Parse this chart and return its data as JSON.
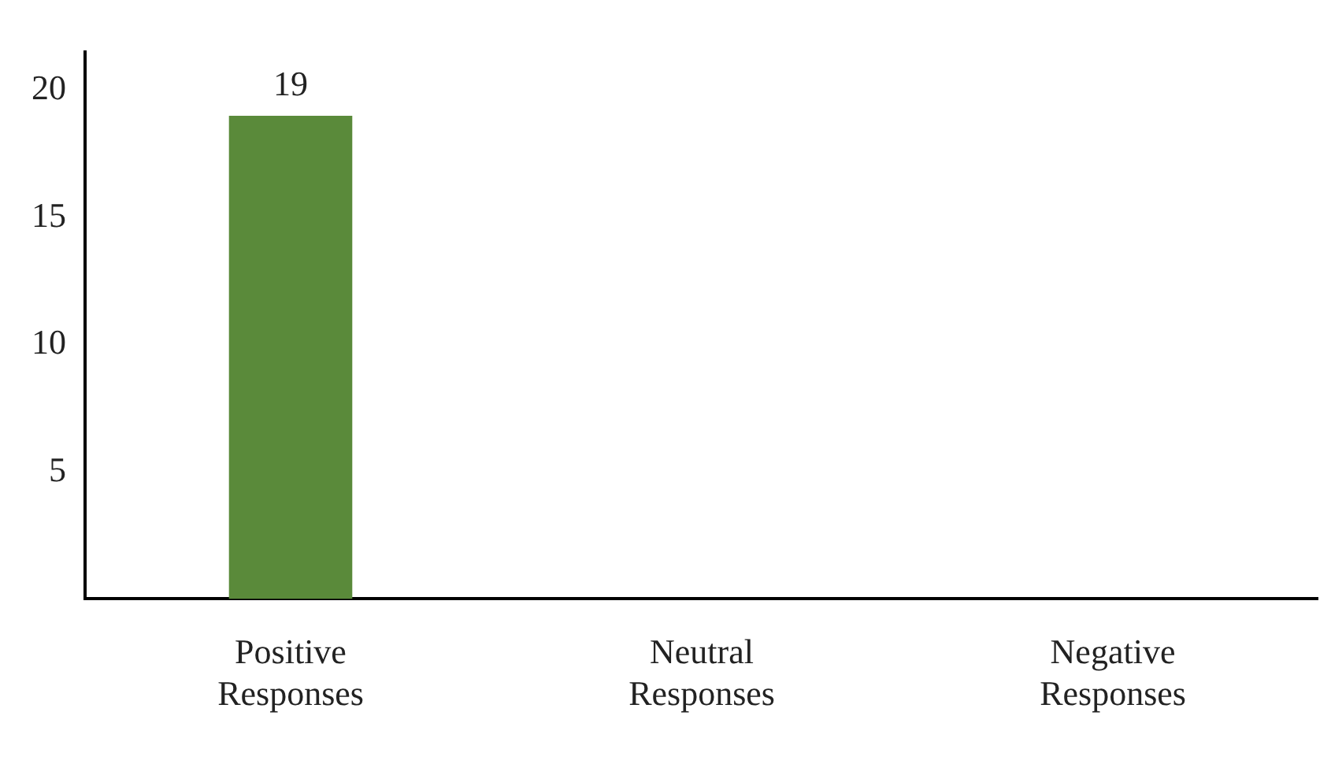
{
  "chart_data": {
    "type": "bar",
    "categories": [
      "Positive Responses",
      "Neutral Responses",
      "Negative Responses"
    ],
    "values": [
      19,
      0,
      0
    ],
    "color": "#5a8a3a",
    "value_labels": [
      "19",
      null,
      null
    ],
    "ylim": [
      0,
      21.5
    ],
    "yticks": [
      5,
      10,
      15,
      20
    ],
    "grid": false,
    "legend": false
  }
}
